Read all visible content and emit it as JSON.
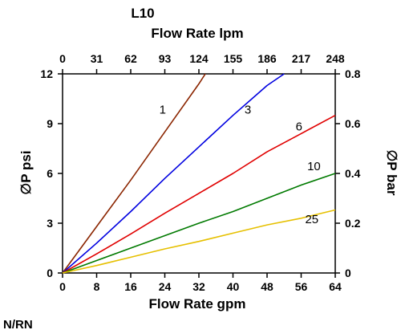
{
  "chart_data": {
    "type": "line",
    "title": "L10",
    "xlabel": "Flow Rate gpm",
    "x2label": "Flow Rate lpm",
    "ylabel": "∅P psi",
    "y2label": "∅P bar",
    "xlim": [
      0,
      64
    ],
    "ylim": [
      0,
      12
    ],
    "y2lim": [
      0,
      0.8
    ],
    "x_ticks": [
      "0",
      "8",
      "16",
      "24",
      "32",
      "40",
      "48",
      "56",
      "64"
    ],
    "x2_ticks": [
      "0",
      "31",
      "62",
      "93",
      "124",
      "155",
      "186",
      "217",
      "248"
    ],
    "y_ticks": [
      "0",
      "3",
      "6",
      "9",
      "12"
    ],
    "y2_ticks": [
      "0",
      "0.2",
      "0.4",
      "0.6",
      "0.8"
    ],
    "grid": false,
    "series": [
      {
        "name": "1",
        "color": "#8b2500",
        "points": [
          [
            0,
            0
          ],
          [
            8,
            2.8
          ],
          [
            16,
            5.6
          ],
          [
            24,
            8.5
          ],
          [
            32,
            11.4
          ],
          [
            33.5,
            12
          ]
        ]
      },
      {
        "name": "3",
        "color": "#0000e0",
        "points": [
          [
            0,
            0
          ],
          [
            8,
            1.8
          ],
          [
            16,
            3.7
          ],
          [
            24,
            5.7
          ],
          [
            32,
            7.6
          ],
          [
            40,
            9.5
          ],
          [
            48,
            11.3
          ],
          [
            52,
            12
          ]
        ]
      },
      {
        "name": "6",
        "color": "#e00000",
        "points": [
          [
            0,
            0
          ],
          [
            8,
            1.15
          ],
          [
            16,
            2.35
          ],
          [
            24,
            3.6
          ],
          [
            32,
            4.8
          ],
          [
            40,
            6.0
          ],
          [
            48,
            7.3
          ],
          [
            56,
            8.4
          ],
          [
            64,
            9.5
          ]
        ]
      },
      {
        "name": "10",
        "color": "#007a00",
        "points": [
          [
            0,
            0
          ],
          [
            8,
            0.75
          ],
          [
            16,
            1.5
          ],
          [
            24,
            2.25
          ],
          [
            32,
            3.0
          ],
          [
            40,
            3.7
          ],
          [
            48,
            4.5
          ],
          [
            56,
            5.3
          ],
          [
            64,
            6.0
          ]
        ]
      },
      {
        "name": "25",
        "color": "#e6c000",
        "points": [
          [
            0,
            0
          ],
          [
            8,
            0.45
          ],
          [
            16,
            0.95
          ],
          [
            24,
            1.45
          ],
          [
            32,
            1.9
          ],
          [
            40,
            2.4
          ],
          [
            48,
            2.9
          ],
          [
            56,
            3.3
          ],
          [
            64,
            3.8
          ]
        ]
      }
    ],
    "series_labels": [
      {
        "text": "1",
        "x": 23.5,
        "y": 9.6
      },
      {
        "text": "3",
        "x": 43.5,
        "y": 9.6
      },
      {
        "text": "6",
        "x": 55.5,
        "y": 8.6
      },
      {
        "text": "10",
        "x": 59,
        "y": 6.2
      },
      {
        "text": "25",
        "x": 58.5,
        "y": 3.0
      }
    ]
  },
  "footer": "N/RN"
}
